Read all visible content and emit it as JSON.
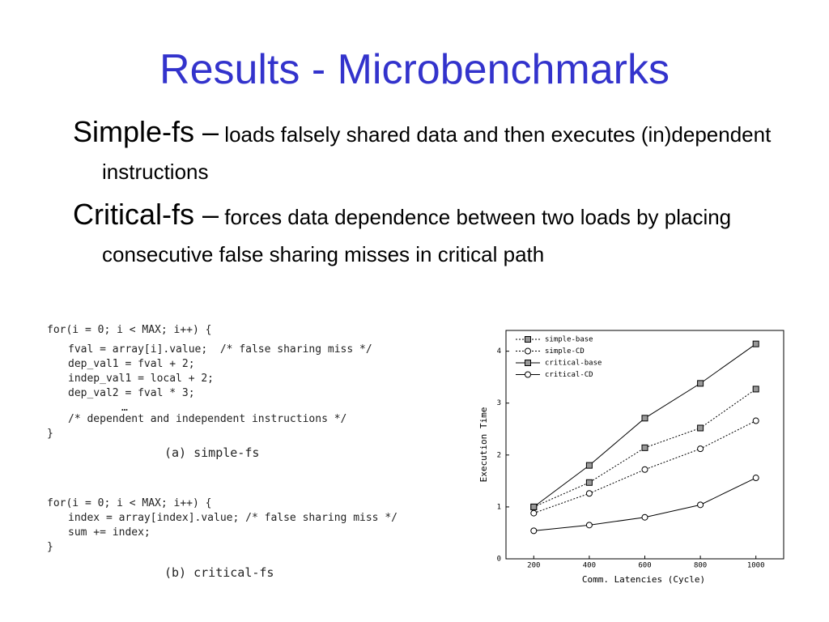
{
  "title": "Results - Microbenchmarks",
  "bullets": [
    {
      "term": "Simple-fs –",
      "text": "loads falsely shared data and then executes (in)dependent instructions"
    },
    {
      "term": "Critical-fs –",
      "text": "forces data dependence between two loads by placing consecutive false sharing misses in critical path"
    }
  ],
  "code": [
    {
      "lines": [
        "for(i = 0; i < MAX; i++) {",
        "fval = array[i].value;  /* false sharing miss */",
        "dep_val1 = fval + 2;",
        "indep_val1 = local + 2;",
        "dep_val2 = fval * 3;",
        "…",
        "/* dependent and independent instructions */",
        "}"
      ],
      "caption": "(a) simple-fs"
    },
    {
      "lines": [
        "for(i = 0; i < MAX; i++) {",
        "index = array[index].value; /* false sharing miss */",
        "sum += index;",
        "}"
      ],
      "caption": "(b) critical-fs"
    }
  ],
  "chart_data": {
    "type": "line",
    "x_label": "Comm. Latencies (Cycle)",
    "y_label": "Execution Time",
    "x": [
      200,
      400,
      600,
      800,
      1000
    ],
    "xlim": [
      100,
      1100
    ],
    "xticks": [
      200,
      400,
      600,
      800,
      1000
    ],
    "ylim": [
      0,
      4.4
    ],
    "yticks": [
      0,
      1,
      2,
      3,
      4
    ],
    "legend": "upper left",
    "series": [
      {
        "name": "simple-base",
        "color": "#000000",
        "dash": "dotted",
        "marker": "square",
        "values": [
          1.0,
          1.47,
          2.14,
          2.52,
          3.27
        ]
      },
      {
        "name": "simple-CD",
        "color": "#000000",
        "dash": "dotted",
        "marker": "circle",
        "values": [
          0.88,
          1.26,
          1.72,
          2.12,
          2.66
        ]
      },
      {
        "name": "critical-base",
        "color": "#000000",
        "dash": "solid",
        "marker": "square",
        "values": [
          1.0,
          1.8,
          2.71,
          3.38,
          4.14
        ]
      },
      {
        "name": "critical-CD",
        "color": "#000000",
        "dash": "solid",
        "marker": "circle",
        "values": [
          0.54,
          0.65,
          0.8,
          1.04,
          1.56
        ]
      }
    ]
  }
}
